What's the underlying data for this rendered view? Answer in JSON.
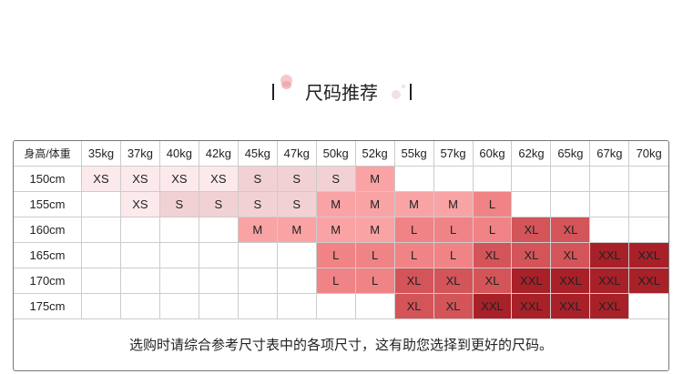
{
  "title": "尺码推荐",
  "corner_label": "身高/体重",
  "weights": [
    "35kg",
    "37kg",
    "40kg",
    "42kg",
    "45kg",
    "47kg",
    "50kg",
    "52kg",
    "55kg",
    "57kg",
    "60kg",
    "62kg",
    "65kg",
    "67kg",
    "70kg"
  ],
  "rows": [
    {
      "height": "150cm",
      "sizes": [
        "XS",
        "XS",
        "XS",
        "XS",
        "S",
        "S",
        "S",
        "M",
        "",
        "",
        "",
        "",
        "",
        "",
        ""
      ]
    },
    {
      "height": "155cm",
      "sizes": [
        "",
        "XS",
        "S",
        "S",
        "S",
        "S",
        "M",
        "M",
        "M",
        "M",
        "L",
        "",
        "",
        "",
        ""
      ]
    },
    {
      "height": "160cm",
      "sizes": [
        "",
        "",
        "",
        "",
        "M",
        "M",
        "M",
        "M",
        "L",
        "L",
        "L",
        "XL",
        "XL",
        "",
        ""
      ]
    },
    {
      "height": "165cm",
      "sizes": [
        "",
        "",
        "",
        "",
        "",
        "",
        "L",
        "L",
        "L",
        "L",
        "XL",
        "XL",
        "XL",
        "XXL",
        "XXL"
      ]
    },
    {
      "height": "170cm",
      "sizes": [
        "",
        "",
        "",
        "",
        "",
        "",
        "L",
        "L",
        "XL",
        "XL",
        "XL",
        "XXL",
        "XXL",
        "XXL",
        "XXL"
      ]
    },
    {
      "height": "175cm",
      "sizes": [
        "",
        "",
        "",
        "",
        "",
        "",
        "",
        "",
        "XL",
        "XL",
        "XXL",
        "XXL",
        "XXL",
        "XXL",
        ""
      ]
    }
  ],
  "size_colors": {
    "XS": "#fbe9ec",
    "S": "#f2d1d5",
    "M": "#f9a3a5",
    "L": "#f08386",
    "XL": "#d35559",
    "XXL": "#a82129"
  },
  "footer": "选购时请综合参考尺寸表中的各项尺寸，这有助您选择到更好的尺码。"
}
